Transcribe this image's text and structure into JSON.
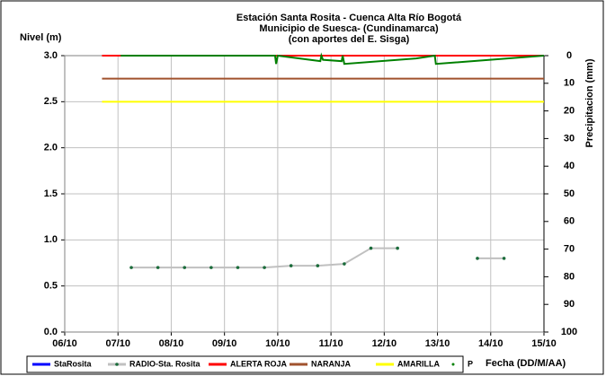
{
  "chart_data": {
    "type": "line",
    "title": [
      "Estación Santa Rosita - Cuenca Alta Río Bogotá",
      "Municipio de Suesca- (Cundinamarca)",
      "(con aportes del  E. Sisga)"
    ],
    "ylabel": "Nivel (m)",
    "y2label": "Precipitacion (mm)",
    "xlabel": "Fecha (DD/M/AA)",
    "xlim": [
      6,
      15
    ],
    "xticks": [
      {
        "value": 6,
        "label": "06/10"
      },
      {
        "value": 7,
        "label": "07/10"
      },
      {
        "value": 8,
        "label": "08/10"
      },
      {
        "value": 9,
        "label": "09/10"
      },
      {
        "value": 10,
        "label": "10/10"
      },
      {
        "value": 11,
        "label": "11/10"
      },
      {
        "value": 12,
        "label": "12/10"
      },
      {
        "value": 13,
        "label": "13/10"
      },
      {
        "value": 14,
        "label": "14/10"
      },
      {
        "value": 15,
        "label": "15/10"
      }
    ],
    "ylim": [
      0,
      3
    ],
    "yticks": [
      {
        "value": 0,
        "label": "0.0"
      },
      {
        "value": 0.5,
        "label": "0.5"
      },
      {
        "value": 1,
        "label": "1.0"
      },
      {
        "value": 1.5,
        "label": "1.5"
      },
      {
        "value": 2,
        "label": "2.0"
      },
      {
        "value": 2.5,
        "label": "2.5"
      },
      {
        "value": 3,
        "label": "3.0"
      }
    ],
    "y2lim": [
      0,
      100
    ],
    "y2inverted": true,
    "y2ticks": [
      0,
      10,
      20,
      30,
      40,
      50,
      60,
      70,
      80,
      90,
      100
    ],
    "grid": true,
    "legend": "bottom",
    "series": [
      {
        "name": "StaRosita",
        "color": "#0000ff",
        "x": [],
        "values": []
      },
      {
        "name": "RADIO-Sta. Rosita",
        "color": "#c0c0c0",
        "marker_color": "#1a6b3a",
        "x": [
          7.25,
          7.75,
          8.25,
          8.75,
          9.25,
          9.75,
          10.25,
          10.75,
          11.25,
          11.75,
          12.25,
          12.75,
          13.25,
          13.75,
          14.25
        ],
        "values": [
          0.7,
          0.7,
          0.7,
          0.7,
          0.7,
          0.7,
          0.72,
          0.72,
          0.74,
          0.91,
          0.91,
          null,
          null,
          0.8,
          0.8
        ]
      },
      {
        "name": "ALERTA ROJA",
        "color": "#ff0000",
        "x": [
          6.7,
          15
        ],
        "values": [
          3,
          3
        ]
      },
      {
        "name": "NARANJA",
        "color": "#a0522d",
        "x": [
          6.7,
          15
        ],
        "values": [
          2.75,
          2.75
        ]
      },
      {
        "name": "AMARILLA",
        "color": "#ffff00",
        "x": [
          6.7,
          15
        ],
        "values": [
          2.5,
          2.5
        ]
      },
      {
        "name": "P",
        "color": "#008000",
        "axis": "y2",
        "x": [
          7.05,
          9.95,
          9.97,
          10.0,
          10.8,
          10.82,
          10.85,
          11.2,
          11.22,
          11.25,
          12.6,
          12.95,
          12.97,
          15.0
        ],
        "values": [
          0,
          0,
          3,
          0,
          2,
          0,
          1.5,
          2,
          0,
          3,
          1,
          0,
          3,
          0
        ]
      }
    ]
  }
}
